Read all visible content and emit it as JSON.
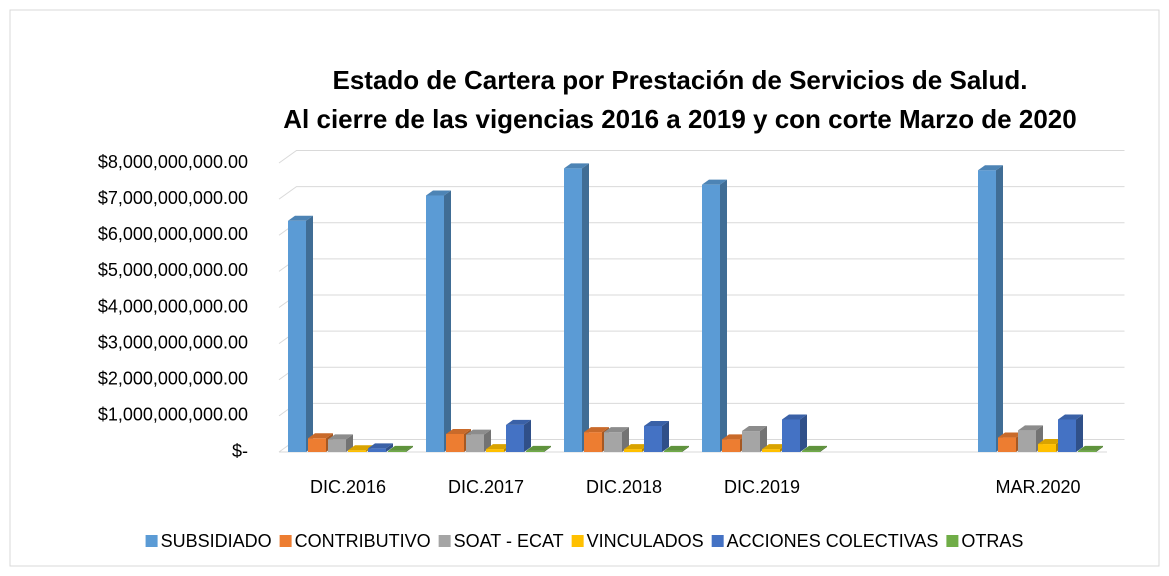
{
  "chart_data": {
    "type": "bar3d",
    "title": "Estado de Cartera por Prestación de Servicios de Salud.",
    "subtitle": "Al cierre de las vigencias 2016 a 2019 y con corte Marzo de 2020",
    "categories": [
      "DIC.2016",
      "DIC.2017",
      "DIC.2018",
      "DIC.2019",
      null,
      "MAR.2020"
    ],
    "series": [
      {
        "name": "SUBSIDIADO",
        "color": "#5b9bd5",
        "values": [
          6400000000,
          7100000000,
          7850000000,
          7400000000,
          null,
          7800000000
        ]
      },
      {
        "name": "CONTRIBUTIVO",
        "color": "#ed7d31",
        "values": [
          380000000,
          500000000,
          550000000,
          350000000,
          null,
          400000000
        ]
      },
      {
        "name": "SOAT - ECAT",
        "color": "#a5a5a5",
        "values": [
          350000000,
          480000000,
          550000000,
          580000000,
          null,
          600000000
        ]
      },
      {
        "name": "VINCULADOS",
        "color": "#ffc000",
        "values": [
          50000000,
          80000000,
          80000000,
          80000000,
          null,
          220000000
        ]
      },
      {
        "name": "ACCIONES COLECTIVAS",
        "color": "#4472c4",
        "values": [
          100000000,
          750000000,
          720000000,
          900000000,
          null,
          900000000
        ]
      },
      {
        "name": "OTRAS",
        "color": "#70ad47",
        "values": [
          30000000,
          30000000,
          30000000,
          30000000,
          null,
          30000000
        ]
      }
    ],
    "ylim": [
      0,
      8000000000
    ],
    "yticks": [
      {
        "value": 0,
        "label": "$-"
      },
      {
        "value": 1000000000,
        "label": "$1,000,000,000.00"
      },
      {
        "value": 2000000000,
        "label": "$2,000,000,000.00"
      },
      {
        "value": 3000000000,
        "label": "$3,000,000,000.00"
      },
      {
        "value": 4000000000,
        "label": "$4,000,000,000.00"
      },
      {
        "value": 5000000000,
        "label": "$5,000,000,000.00"
      },
      {
        "value": 6000000000,
        "label": "$6,000,000,000.00"
      },
      {
        "value": 7000000000,
        "label": "$7,000,000,000.00"
      },
      {
        "value": 8000000000,
        "label": "$8,000,000,000.00"
      }
    ],
    "grid": true,
    "legend": "bottom"
  }
}
